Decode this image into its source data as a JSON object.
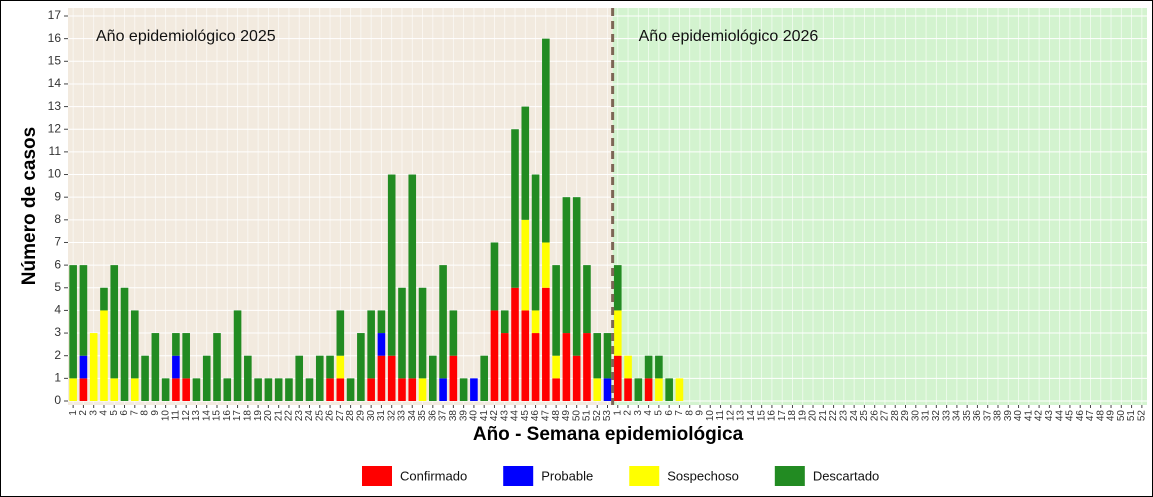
{
  "chart_data": {
    "type": "stacked-bar",
    "x_label": "Año - Semana epidemiológica",
    "y_label": "Número de casos",
    "annotations": [
      "Año epidemiológico 2025",
      "Año epidemiológico 2026"
    ],
    "period_colors": [
      "#f2eadf",
      "#d3f3cf"
    ],
    "categories": [
      "1",
      "2",
      "3",
      "4",
      "5",
      "6",
      "7",
      "8",
      "9",
      "10",
      "11",
      "12",
      "13",
      "14",
      "15",
      "16",
      "17",
      "18",
      "19",
      "20",
      "21",
      "22",
      "23",
      "24",
      "25",
      "26",
      "27",
      "28",
      "29",
      "30",
      "31",
      "32",
      "33",
      "34",
      "35",
      "36",
      "37",
      "38",
      "39",
      "40",
      "41",
      "42",
      "43",
      "44",
      "45",
      "46",
      "47",
      "48",
      "49",
      "50",
      "51",
      "52",
      "53",
      "1",
      "2",
      "3",
      "4",
      "5",
      "6",
      "7",
      "8",
      "9",
      "10",
      "11",
      "12",
      "13",
      "14",
      "15",
      "16",
      "17",
      "18",
      "19",
      "20",
      "21",
      "22",
      "23",
      "24",
      "25",
      "26",
      "27",
      "28",
      "29",
      "30",
      "31",
      "32",
      "33",
      "34",
      "35",
      "36",
      "37",
      "38",
      "39",
      "40",
      "41",
      "42",
      "43",
      "44",
      "45",
      "46",
      "47",
      "48",
      "49",
      "50",
      "51",
      "52"
    ],
    "series": [
      {
        "name": "Confirmado",
        "color": "#ff0000",
        "values": [
          0,
          1,
          0,
          0,
          0,
          0,
          0,
          0,
          0,
          0,
          1,
          1,
          0,
          0,
          0,
          0,
          0,
          0,
          0,
          0,
          0,
          0,
          0,
          0,
          0,
          1,
          1,
          0,
          0,
          1,
          2,
          2,
          1,
          1,
          0,
          0,
          0,
          2,
          0,
          0,
          0,
          4,
          3,
          5,
          4,
          3,
          5,
          1,
          3,
          2,
          3,
          0,
          0,
          2,
          1,
          0,
          1,
          0,
          0,
          0,
          0,
          0,
          0,
          0,
          0,
          0,
          0,
          0,
          0,
          0,
          0,
          0,
          0,
          0,
          0,
          0,
          0,
          0,
          0,
          0,
          0,
          0,
          0,
          0,
          0,
          0,
          0,
          0,
          0,
          0,
          0,
          0,
          0,
          0,
          0,
          0,
          0,
          0,
          0,
          0,
          0,
          0,
          0,
          0,
          0
        ]
      },
      {
        "name": "Probable",
        "color": "#0000ff",
        "values": [
          0,
          1,
          0,
          0,
          0,
          0,
          0,
          0,
          0,
          0,
          1,
          0,
          0,
          0,
          0,
          0,
          0,
          0,
          0,
          0,
          0,
          0,
          0,
          0,
          0,
          0,
          0,
          0,
          0,
          0,
          1,
          0,
          0,
          0,
          0,
          0,
          1,
          0,
          0,
          1,
          0,
          0,
          0,
          0,
          0,
          0,
          0,
          0,
          0,
          0,
          0,
          0,
          1,
          0,
          0,
          0,
          0,
          0,
          0,
          0,
          0,
          0,
          0,
          0,
          0,
          0,
          0,
          0,
          0,
          0,
          0,
          0,
          0,
          0,
          0,
          0,
          0,
          0,
          0,
          0,
          0,
          0,
          0,
          0,
          0,
          0,
          0,
          0,
          0,
          0,
          0,
          0,
          0,
          0,
          0,
          0,
          0,
          0,
          0,
          0,
          0,
          0,
          0,
          0,
          0
        ]
      },
      {
        "name": "Sospechoso",
        "color": "#ffff00",
        "values": [
          1,
          0,
          3,
          4,
          1,
          0,
          1,
          0,
          0,
          0,
          0,
          0,
          0,
          0,
          0,
          0,
          0,
          0,
          0,
          0,
          0,
          0,
          0,
          0,
          0,
          0,
          1,
          0,
          0,
          0,
          0,
          0,
          0,
          0,
          1,
          0,
          0,
          0,
          0,
          0,
          0,
          0,
          0,
          0,
          4,
          1,
          2,
          1,
          0,
          0,
          0,
          1,
          0,
          2,
          1,
          0,
          0,
          1,
          0,
          1,
          0,
          0,
          0,
          0,
          0,
          0,
          0,
          0,
          0,
          0,
          0,
          0,
          0,
          0,
          0,
          0,
          0,
          0,
          0,
          0,
          0,
          0,
          0,
          0,
          0,
          0,
          0,
          0,
          0,
          0,
          0,
          0,
          0,
          0,
          0,
          0,
          0,
          0,
          0,
          0,
          0,
          0,
          0,
          0,
          0
        ]
      },
      {
        "name": "Descartado",
        "color": "#228b22",
        "values": [
          5,
          4,
          0,
          1,
          5,
          5,
          3,
          2,
          3,
          1,
          1,
          2,
          1,
          2,
          3,
          1,
          4,
          2,
          1,
          1,
          1,
          1,
          2,
          1,
          2,
          1,
          2,
          1,
          3,
          3,
          1,
          8,
          4,
          9,
          4,
          2,
          5,
          2,
          1,
          0,
          2,
          3,
          1,
          7,
          5,
          6,
          9,
          4,
          6,
          7,
          3,
          2,
          2,
          2,
          0,
          1,
          1,
          1,
          1,
          0,
          0,
          0,
          0,
          0,
          0,
          0,
          0,
          0,
          0,
          0,
          0,
          0,
          0,
          0,
          0,
          0,
          0,
          0,
          0,
          0,
          0,
          0,
          0,
          0,
          0,
          0,
          0,
          0,
          0,
          0,
          0,
          0,
          0,
          0,
          0,
          0,
          0,
          0,
          0,
          0,
          0,
          0,
          0,
          0,
          0
        ]
      }
    ],
    "ylim": [
      0,
      17
    ],
    "yticks": [
      0,
      1,
      2,
      3,
      4,
      5,
      6,
      7,
      8,
      9,
      10,
      11,
      12,
      13,
      14,
      15,
      16,
      17
    ],
    "grid": true
  }
}
